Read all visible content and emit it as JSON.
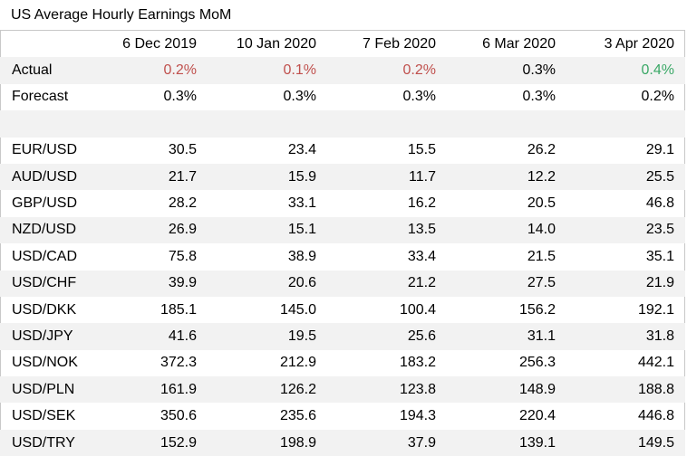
{
  "title": "US Average Hourly Earnings MoM",
  "columns": [
    "6 Dec 2019",
    "10 Jan 2020",
    "7 Feb 2020",
    "6 Mar 2020",
    "3 Apr 2020"
  ],
  "rows": [
    {
      "label": "Actual",
      "values": [
        "0.2%",
        "0.1%",
        "0.2%",
        "0.3%",
        "0.4%"
      ],
      "colors": [
        "red",
        "red",
        "red",
        "",
        "green"
      ]
    },
    {
      "label": "Forecast",
      "values": [
        "0.3%",
        "0.3%",
        "0.3%",
        "0.3%",
        "0.2%"
      ],
      "colors": [
        "",
        "",
        "",
        "",
        ""
      ]
    },
    {
      "label": "",
      "values": [
        "",
        "",
        "",
        "",
        ""
      ],
      "colors": [
        "",
        "",
        "",
        "",
        ""
      ]
    },
    {
      "label": "EUR/USD",
      "values": [
        "30.5",
        "23.4",
        "15.5",
        "26.2",
        "29.1"
      ],
      "colors": [
        "",
        "",
        "",
        "",
        ""
      ]
    },
    {
      "label": "AUD/USD",
      "values": [
        "21.7",
        "15.9",
        "11.7",
        "12.2",
        "25.5"
      ],
      "colors": [
        "",
        "",
        "",
        "",
        ""
      ]
    },
    {
      "label": "GBP/USD",
      "values": [
        "28.2",
        "33.1",
        "16.2",
        "20.5",
        "46.8"
      ],
      "colors": [
        "",
        "",
        "",
        "",
        ""
      ]
    },
    {
      "label": "NZD/USD",
      "values": [
        "26.9",
        "15.1",
        "13.5",
        "14.0",
        "23.5"
      ],
      "colors": [
        "",
        "",
        "",
        "",
        ""
      ]
    },
    {
      "label": "USD/CAD",
      "values": [
        "75.8",
        "38.9",
        "33.4",
        "21.5",
        "35.1"
      ],
      "colors": [
        "",
        "",
        "",
        "",
        ""
      ]
    },
    {
      "label": "USD/CHF",
      "values": [
        "39.9",
        "20.6",
        "21.2",
        "27.5",
        "21.9"
      ],
      "colors": [
        "",
        "",
        "",
        "",
        ""
      ]
    },
    {
      "label": "USD/DKK",
      "values": [
        "185.1",
        "145.0",
        "100.4",
        "156.2",
        "192.1"
      ],
      "colors": [
        "",
        "",
        "",
        "",
        ""
      ]
    },
    {
      "label": "USD/JPY",
      "values": [
        "41.6",
        "19.5",
        "25.6",
        "31.1",
        "31.8"
      ],
      "colors": [
        "",
        "",
        "",
        "",
        ""
      ]
    },
    {
      "label": "USD/NOK",
      "values": [
        "372.3",
        "212.9",
        "183.2",
        "256.3",
        "442.1"
      ],
      "colors": [
        "",
        "",
        "",
        "",
        ""
      ]
    },
    {
      "label": "USD/PLN",
      "values": [
        "161.9",
        "126.2",
        "123.8",
        "148.9",
        "188.8"
      ],
      "colors": [
        "",
        "",
        "",
        "",
        ""
      ]
    },
    {
      "label": "USD/SEK",
      "values": [
        "350.6",
        "235.6",
        "194.3",
        "220.4",
        "446.8"
      ],
      "colors": [
        "",
        "",
        "",
        "",
        ""
      ]
    },
    {
      "label": "USD/TRY",
      "values": [
        "152.9",
        "198.9",
        "37.9",
        "139.1",
        "149.5"
      ],
      "colors": [
        "",
        "",
        "",
        "",
        ""
      ]
    }
  ],
  "colors": {
    "negative": "#c0504d",
    "positive": "#3aa866",
    "band": "#f2f2f2"
  }
}
